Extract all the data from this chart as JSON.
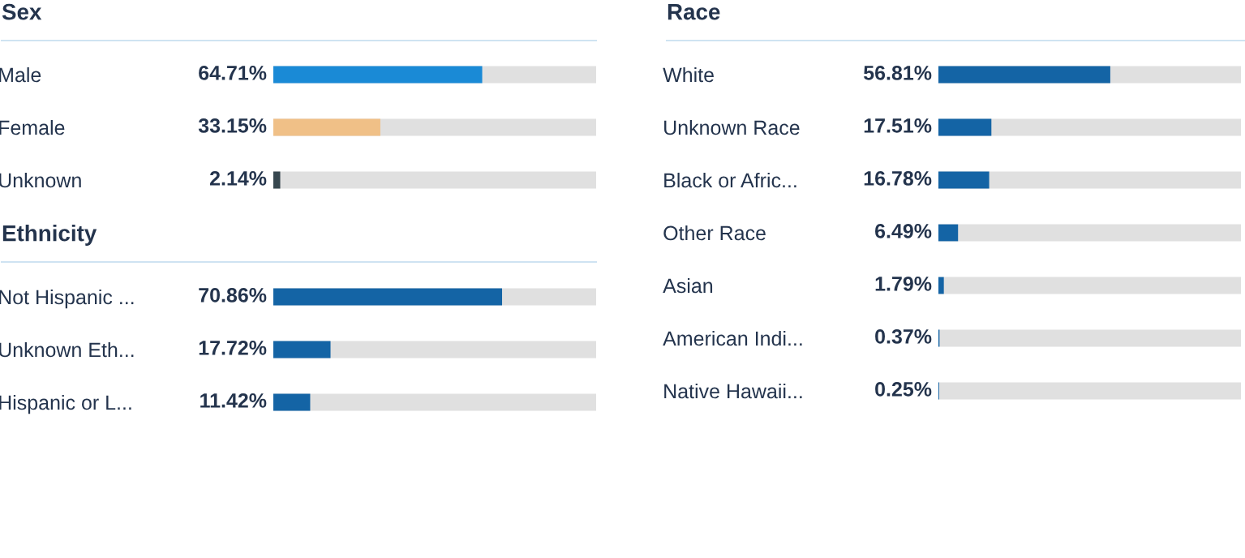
{
  "chart_data": [
    {
      "type": "bar",
      "orientation": "horizontal",
      "title": "Sex",
      "categories": [
        "Male",
        "Female",
        "Unknown"
      ],
      "values": [
        64.71,
        33.15,
        2.14
      ],
      "colors": [
        "#1a8ad6",
        "#f0c087",
        "#37474f"
      ],
      "value_labels": [
        "64.71%",
        "33.15%",
        "2.14%"
      ],
      "xlim": [
        0,
        100
      ],
      "tick_labels": "y",
      "grid": false,
      "legend": false
    },
    {
      "type": "bar",
      "orientation": "horizontal",
      "title": "Ethnicity",
      "categories": [
        "Not Hispanic ...",
        "Unknown Eth...",
        "Hispanic or L..."
      ],
      "values": [
        70.86,
        17.72,
        11.42
      ],
      "colors": [
        "#1464a5",
        "#1464a5",
        "#1464a5"
      ],
      "value_labels": [
        "70.86%",
        "17.72%",
        "11.42%"
      ],
      "xlim": [
        0,
        100
      ],
      "tick_labels": "y",
      "grid": false,
      "legend": false
    },
    {
      "type": "bar",
      "orientation": "horizontal",
      "title": "Race",
      "categories": [
        "White",
        "Unknown Race",
        "Black or Afric...",
        "Other Race",
        "Asian",
        "American Indi...",
        "Native Hawaii..."
      ],
      "values": [
        56.81,
        17.51,
        16.78,
        6.49,
        1.79,
        0.37,
        0.25
      ],
      "colors": [
        "#1464a5",
        "#1464a5",
        "#1464a5",
        "#1464a5",
        "#1464a5",
        "#1464a5",
        "#1464a5"
      ],
      "value_labels": [
        "56.81%",
        "17.51%",
        "16.78%",
        "6.49%",
        "1.79%",
        "0.37%",
        "0.25%"
      ],
      "xlim": [
        0,
        100
      ],
      "tick_labels": "y",
      "grid": false,
      "legend": false
    }
  ]
}
